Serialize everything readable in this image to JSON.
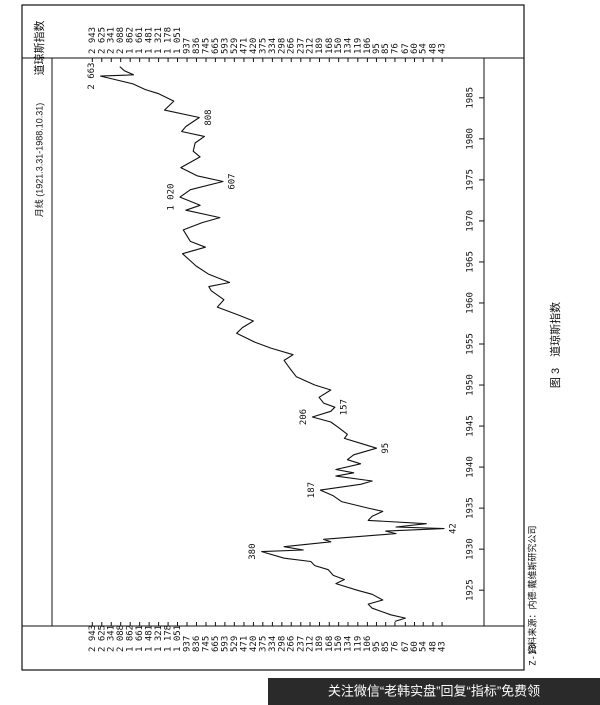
{
  "chart_data": {
    "type": "line",
    "title": "道琼斯指数",
    "subtitle": "月线 (1921.3.31-1988.10.31)",
    "log_scale": true,
    "grid": false,
    "color": "#111111",
    "xlim": [
      1921,
      1989
    ],
    "xticks": [
      1925,
      1930,
      1935,
      1940,
      1945,
      1950,
      1955,
      1960,
      1965,
      1970,
      1975,
      1980,
      1985
    ],
    "ylim": [
      41,
      3100
    ],
    "yticks": [
      {
        "value": 2943,
        "label": "2 943"
      },
      {
        "value": 2625,
        "label": "2 625"
      },
      {
        "value": 2341,
        "label": "2 341"
      },
      {
        "value": 2088,
        "label": "2 088"
      },
      {
        "value": 1862,
        "label": "1 862"
      },
      {
        "value": 1661,
        "label": "1 661"
      },
      {
        "value": 1481,
        "label": "1 481"
      },
      {
        "value": 1321,
        "label": "1 321"
      },
      {
        "value": 1178,
        "label": "1 178"
      },
      {
        "value": 1051,
        "label": "1 051"
      },
      937,
      836,
      745,
      665,
      593,
      529,
      471,
      420,
      375,
      334,
      298,
      266,
      237,
      212,
      189,
      168,
      150,
      134,
      119,
      106,
      95,
      85,
      76,
      67,
      60,
      54,
      48,
      43
    ],
    "x": [
      1921.2,
      1921.6,
      1922.0,
      1922.8,
      1923.3,
      1923.8,
      1924.5,
      1925.0,
      1925.8,
      1926.3,
      1926.8,
      1927.5,
      1928.0,
      1928.5,
      1928.9,
      1929.7,
      1929.9,
      1930.3,
      1930.9,
      1931.2,
      1931.9,
      1932.2,
      1932.5,
      1932.7,
      1933.1,
      1933.5,
      1934.0,
      1934.6,
      1935.0,
      1935.8,
      1936.5,
      1937.2,
      1937.9,
      1938.3,
      1938.9,
      1939.3,
      1939.7,
      1940.4,
      1940.9,
      1941.5,
      1942.3,
      1942.9,
      1943.5,
      1944.0,
      1944.8,
      1945.5,
      1946.1,
      1946.8,
      1947.3,
      1947.8,
      1948.5,
      1949.4,
      1950.0,
      1951.0,
      1952.0,
      1953.0,
      1953.7,
      1954.5,
      1955.2,
      1956.3,
      1957.0,
      1957.8,
      1958.5,
      1959.5,
      1960.4,
      1961.5,
      1962.0,
      1962.5,
      1963.5,
      1964.5,
      1966.0,
      1966.8,
      1967.5,
      1968.9,
      1969.8,
      1970.4,
      1971.3,
      1971.9,
      1972.9,
      1973.8,
      1974.8,
      1975.5,
      1976.5,
      1977.8,
      1978.5,
      1979.5,
      1980.3,
      1980.9,
      1981.5,
      1982.6,
      1983.5,
      1984.6,
      1985.5,
      1986.0,
      1986.7,
      1987.3,
      1987.65,
      1987.8,
      1988.3,
      1988.8
    ],
    "values": [
      76,
      67,
      80,
      100,
      105,
      88,
      100,
      120,
      155,
      140,
      160,
      170,
      200,
      210,
      290,
      380,
      230,
      290,
      165,
      180,
      75,
      85,
      42,
      75,
      52,
      105,
      100,
      88,
      105,
      145,
      160,
      187,
      115,
      100,
      155,
      125,
      155,
      115,
      135,
      125,
      95,
      115,
      140,
      135,
      150,
      165,
      206,
      165,
      157,
      180,
      190,
      165,
      200,
      250,
      270,
      290,
      260,
      340,
      410,
      515,
      480,
      420,
      500,
      650,
      600,
      700,
      720,
      560,
      720,
      840,
      990,
      750,
      900,
      980,
      780,
      630,
      950,
      800,
      1020,
      900,
      607,
      830,
      1010,
      800,
      870,
      850,
      760,
      1000,
      950,
      808,
      1230,
      1100,
      1320,
      1550,
      1800,
      2300,
      2663,
      1790,
      2000,
      2110
    ],
    "annotations": [
      {
        "x": 1929.7,
        "value": 380,
        "label": "380"
      },
      {
        "x": 1932.5,
        "value": 42,
        "label": "42"
      },
      {
        "x": 1937.2,
        "value": 187,
        "label": "187"
      },
      {
        "x": 1942.3,
        "value": 95,
        "label": "95"
      },
      {
        "x": 1946.1,
        "value": 206,
        "label": "206"
      },
      {
        "x": 1947.3,
        "value": 157,
        "label": "157"
      },
      {
        "x": 1972.9,
        "value": 1020,
        "label": "1 020"
      },
      {
        "x": 1974.8,
        "value": 607,
        "label": "607"
      },
      {
        "x": 1982.6,
        "value": 808,
        "label": "808"
      },
      {
        "x": 1987.65,
        "value": 2663,
        "label": "2 663"
      }
    ]
  },
  "caption": "图 3　道琼斯指数",
  "source": "资料来源：内德·戴维斯研究公司",
  "page_id": "Z-13",
  "watermark": "关注微信“老韩实盘”回复“指标”免费领"
}
